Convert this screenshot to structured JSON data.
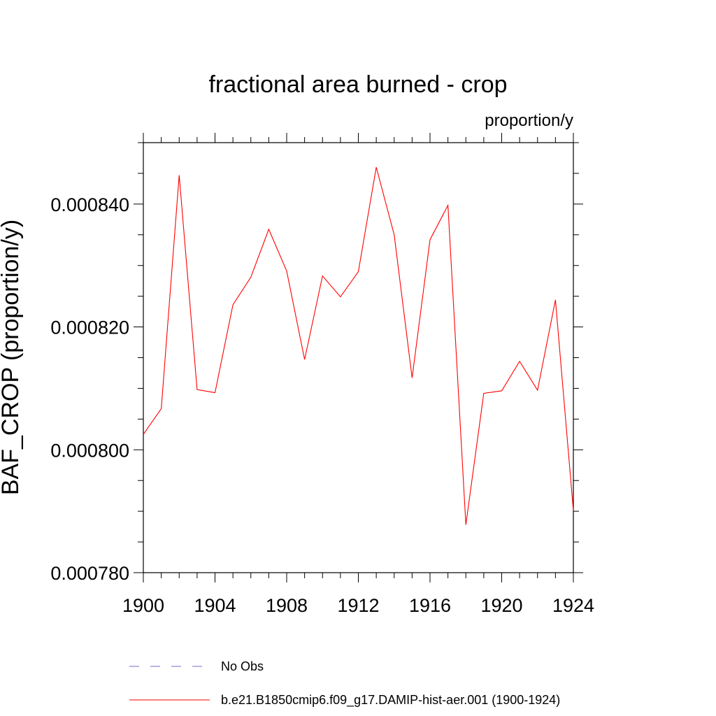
{
  "chart_data": {
    "type": "line",
    "title": "fractional area burned - crop",
    "units_label": "proportion/y",
    "ylabel": "BAF_CROP  (proportion/y)",
    "xlabel": "",
    "xlim": [
      1900,
      1924
    ],
    "ylim": [
      0.00078,
      0.00085
    ],
    "x_ticks": [
      1900,
      1904,
      1908,
      1912,
      1916,
      1920,
      1924
    ],
    "x_tick_labels": [
      "1900",
      "1904",
      "1908",
      "1912",
      "1916",
      "1920",
      "1924"
    ],
    "y_ticks": [
      0.00078,
      0.0008,
      0.00082,
      0.00084
    ],
    "y_tick_labels": [
      "0.000780",
      "0.000800",
      "0.000820",
      "0.000840"
    ],
    "y_minor_step": 5e-06,
    "x_minor_step": 1,
    "grid": false,
    "x": [
      1900,
      1901,
      1902,
      1903,
      1904,
      1905,
      1906,
      1907,
      1908,
      1909,
      1910,
      1911,
      1912,
      1913,
      1914,
      1915,
      1916,
      1917,
      1918,
      1919,
      1920,
      1921,
      1922,
      1923,
      1924
    ],
    "series": [
      {
        "name": "b.e21.B1850cmip6.f09_g17.DAMIP-hist-aer.001 (1900-1924)",
        "color": "#ff0000",
        "values": [
          0.0008025,
          0.0008067,
          0.0008447,
          0.0008098,
          0.0008093,
          0.0008236,
          0.0008281,
          0.0008359,
          0.0008291,
          0.0008147,
          0.0008283,
          0.0008249,
          0.000829,
          0.000846,
          0.000835,
          0.0008117,
          0.0008342,
          0.0008398,
          0.0007878,
          0.0008092,
          0.0008096,
          0.0008144,
          0.0008097,
          0.0008244,
          0.0007901
        ]
      }
    ],
    "legend": {
      "placement": "bottom",
      "entries": [
        {
          "label": "No Obs",
          "style": "dashed",
          "color": "#6f6fcf"
        },
        {
          "label": "b.e21.B1850cmip6.f09_g17.DAMIP-hist-aer.001 (1900-1924)",
          "style": "solid",
          "color": "#ff0000"
        }
      ]
    }
  }
}
